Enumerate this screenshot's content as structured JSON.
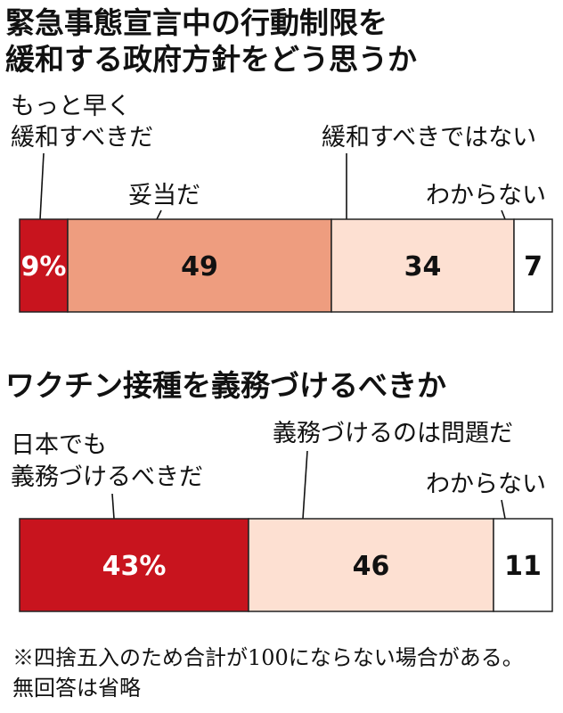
{
  "colors": {
    "strong_red": "#c8141e",
    "salmon": "#ee9d7f",
    "pale_pink": "#fde0d2",
    "white": "#ffffff",
    "border": "#222222"
  },
  "chart_data": [
    {
      "type": "bar",
      "orientation": "horizontal-stacked",
      "title_lines": [
        "緊急事態宣言中の行動制限を",
        "緩和する政府方針をどう思うか"
      ],
      "series": [
        {
          "name_lines": [
            "もっと早く",
            "緩和すべきだ"
          ],
          "value": 9,
          "display": "9%",
          "color": "#c8141e",
          "text_color": "#ffffff"
        },
        {
          "name_lines": [
            "妥当だ"
          ],
          "value": 49,
          "display": "49",
          "color": "#ee9d7f",
          "text_color": "#111111"
        },
        {
          "name_lines": [
            "緩和すべきではない"
          ],
          "value": 34,
          "display": "34",
          "color": "#fde0d2",
          "text_color": "#111111"
        },
        {
          "name_lines": [
            "わからない"
          ],
          "value": 7,
          "display": "7",
          "color": "#ffffff",
          "text_color": "#111111"
        }
      ]
    },
    {
      "type": "bar",
      "orientation": "horizontal-stacked",
      "title_lines": [
        "ワクチン接種を義務づけるべきか"
      ],
      "series": [
        {
          "name_lines": [
            "日本でも",
            "義務づけるべきだ"
          ],
          "value": 43,
          "display": "43%",
          "color": "#c8141e",
          "text_color": "#ffffff"
        },
        {
          "name_lines": [
            "義務づけるのは問題だ"
          ],
          "value": 46,
          "display": "46",
          "color": "#fde0d2",
          "text_color": "#111111"
        },
        {
          "name_lines": [
            "わからない"
          ],
          "value": 11,
          "display": "11",
          "color": "#ffffff",
          "text_color": "#111111"
        }
      ]
    }
  ],
  "footnote_lines": [
    "※四捨五入のため合計が100にならない場合がある。",
    "無回答は省略"
  ]
}
